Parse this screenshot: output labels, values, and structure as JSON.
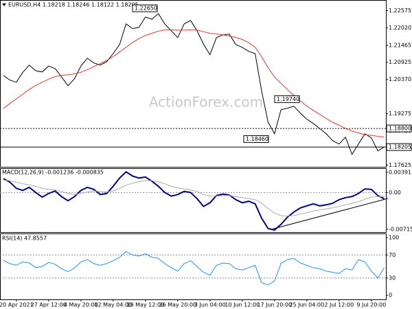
{
  "watermark": "ActionForex.com",
  "chart_data": [
    {
      "type": "line",
      "title": "EURUSD,H4 1.18218 1.18246 1.18122 1.18205",
      "categories": [
        null,
        null,
        "20 Apr 2021",
        null,
        null,
        null,
        null,
        "27 Apr 12:00",
        null,
        null,
        null,
        null,
        "4 May 20:00",
        null,
        null,
        null,
        null,
        "12 May 04:00",
        null,
        null,
        null,
        null,
        "19 May 12:00",
        null,
        null,
        null,
        null,
        "26 May 20:00",
        null,
        null,
        null,
        null,
        "3 Jun 04:00",
        null,
        null,
        null,
        null,
        "10 Jun 12:00",
        null,
        null,
        null,
        null,
        "17 Jun 20:00",
        null,
        null,
        null,
        null,
        "25 Jun 04:00",
        null,
        null,
        null,
        null,
        "2 Jul 12:00",
        null,
        null,
        null,
        null,
        "9 Jul 20:00",
        null,
        null
      ],
      "series": [
        {
          "color": "#000000",
          "values": [
            1.205,
            1.2035,
            1.2028,
            1.206,
            1.2083,
            1.2065,
            1.2061,
            1.208,
            1.2072,
            1.2045,
            1.2017,
            1.2039,
            1.208,
            1.2105,
            1.209,
            1.2083,
            1.2094,
            1.212,
            1.2149,
            1.2215,
            1.22,
            1.2204,
            1.2237,
            1.223,
            1.2248,
            1.2215,
            1.2193,
            1.2171,
            1.2215,
            1.2226,
            1.2193,
            1.215,
            1.2116,
            1.2171,
            1.218,
            1.2182,
            1.2149,
            1.214,
            1.2127,
            1.212,
            1.2,
            1.19,
            1.1863,
            1.194,
            1.1945,
            1.1951,
            1.1929,
            1.191,
            1.1896,
            1.188,
            1.1863,
            1.1841,
            1.183,
            1.1852,
            1.1797,
            1.183,
            1.1863,
            1.185,
            1.1808,
            1.18205
          ]
        },
        {
          "color": "#e8312f",
          "values": [
            1.1944,
            1.196,
            1.1975,
            1.199,
            1.2005,
            1.2018,
            1.2028,
            1.2038,
            1.2046,
            1.205,
            1.2052,
            1.2055,
            1.206,
            1.2068,
            1.2078,
            1.2088,
            1.2098,
            1.211,
            1.2125,
            1.214,
            1.2155,
            1.2168,
            1.2178,
            1.2185,
            1.2192,
            1.2196,
            1.2196,
            1.2195,
            1.2195,
            1.2196,
            1.2195,
            1.219,
            1.2185,
            1.2183,
            1.218,
            1.2176,
            1.2172,
            1.2165,
            1.2155,
            1.214,
            1.211,
            1.2075,
            1.2045,
            1.2025,
            1.2005,
            1.1985,
            1.1968,
            1.1952,
            1.1938,
            1.1925,
            1.1912,
            1.19,
            1.189,
            1.188,
            1.1872,
            1.1866,
            1.186,
            1.1858,
            1.1855,
            1.1852
          ]
        }
      ],
      "ylim": [
        1.1757,
        1.2285
      ],
      "yticks": [
        1.22575,
        {
          "value": 1.2202,
          "label": "1.22020"
        },
        1.21465,
        1.20925,
        {
          "value": 1.2037,
          "label": "1.20370"
        },
        1.19275,
        {
          "value": 1.1872,
          "label": "1.18720"
        },
        1.17625
      ],
      "grid": false,
      "annotations": [
        {
          "value": 1.2265,
          "label": "1.22650"
        },
        {
          "value": 1.1974,
          "label": "1.19740"
        },
        {
          "value": 1.1846,
          "label": "1.18460"
        }
      ],
      "levels": [
        {
          "value": 1.188,
          "label": "1.18800",
          "style": "dotted"
        },
        {
          "value": 1.18205,
          "label": "1.18205",
          "style": "solid"
        }
      ]
    },
    {
      "type": "line",
      "title": "MACD(12,26,9) -0.001236 -0.000835",
      "series": [
        {
          "color": "#00008b",
          "values": [
            0.0027,
            0.002,
            0.0008,
            0.0004,
            0.001,
            0.0,
            -0.0009,
            -0.0002,
            0.0003,
            -0.0008,
            -0.0016,
            -0.0008,
            0.0004,
            0.001,
            0.0006,
            -0.0004,
            -0.0002,
            0.0012,
            0.0028,
            0.004,
            0.0032,
            0.0028,
            0.003,
            0.0022,
            0.0012,
            0.0,
            -0.0007,
            -0.0004,
            0.0002,
            0.0,
            -0.0012,
            -0.0027,
            -0.002,
            -0.0006,
            -0.0003,
            -0.0005,
            -0.0014,
            -0.002,
            -0.0017,
            -0.0022,
            -0.005,
            -0.007,
            -0.0073,
            -0.0062,
            -0.0048,
            -0.0038,
            -0.003,
            -0.0026,
            -0.0022,
            -0.0026,
            -0.0024,
            -0.0021,
            -0.0014,
            -0.001,
            -0.0008,
            -0.0002,
            0.0007,
            0.0006,
            -0.0006,
            -0.001236
          ]
        },
        {
          "color": "#a9a9a9",
          "values": [
            0.0024,
            0.0023,
            0.002,
            0.0017,
            0.0015,
            0.0012,
            0.0008,
            0.0006,
            0.0005,
            0.0002,
            -0.0002,
            -0.0004,
            -0.0002,
            0.0001,
            0.0003,
            0.0002,
            0.0001,
            0.0003,
            0.0008,
            0.0014,
            0.0018,
            0.0021,
            0.0023,
            0.0023,
            0.0021,
            0.0017,
            0.0012,
            0.0009,
            0.0007,
            0.0005,
            0.0002,
            -0.0004,
            -0.0007,
            -0.0007,
            -0.0006,
            -0.0006,
            -0.0008,
            -0.001,
            -0.0012,
            -0.0014,
            -0.0021,
            -0.0031,
            -0.004,
            -0.0045,
            -0.0046,
            -0.0045,
            -0.0042,
            -0.0039,
            -0.0036,
            -0.0034,
            -0.0032,
            -0.003,
            -0.0027,
            -0.0024,
            -0.0021,
            -0.0018,
            -0.0013,
            -0.0009,
            -0.0008,
            -0.000835
          ]
        }
      ],
      "ylim": [
        -0.00769,
        0.00458
      ],
      "yticks": [
        0.003917,
        {
          "value": 0,
          "label": "0.00"
        },
        -0.007152
      ],
      "grid": "inner-dashed"
    },
    {
      "type": "line",
      "title": "RSI(14) 47.8557",
      "series": [
        {
          "color": "#1e90ff",
          "values": [
            61,
            55,
            52,
            58,
            56,
            48,
            50,
            57,
            54,
            46,
            41,
            47,
            58,
            62,
            55,
            52,
            55,
            60,
            66,
            76,
            70,
            68,
            72,
            66,
            64,
            55,
            48,
            42,
            55,
            60,
            50,
            40,
            35,
            52,
            56,
            55,
            46,
            44,
            48,
            52,
            22,
            18,
            25,
            55,
            62,
            64,
            56,
            52,
            48,
            46,
            42,
            40,
            38,
            46,
            44,
            62,
            58,
            42,
            30,
            47.8557
          ]
        }
      ],
      "ylim": [
        -7,
        106
      ],
      "yticks": [
        100,
        70,
        30,
        0
      ],
      "grid": "inner-dashed"
    }
  ]
}
